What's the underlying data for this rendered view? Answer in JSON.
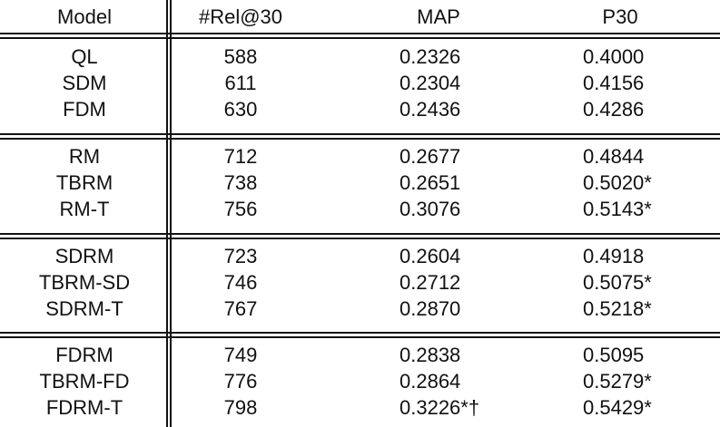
{
  "table": {
    "headers": [
      "Model",
      "#Rel@30",
      "MAP",
      "P30"
    ],
    "groups": [
      [
        [
          "QL",
          "588",
          "0.2326",
          "0.4000"
        ],
        [
          "SDM",
          "611",
          "0.2304",
          "0.4156"
        ],
        [
          "FDM",
          "630",
          "0.2436",
          "0.4286"
        ]
      ],
      [
        [
          "RM",
          "712",
          "0.2677",
          "0.4844"
        ],
        [
          "TBRM",
          "738",
          "0.2651",
          "0.5020*"
        ],
        [
          "RM-T",
          "756",
          "0.3076",
          "0.5143*"
        ]
      ],
      [
        [
          "SDRM",
          "723",
          "0.2604",
          "0.4918"
        ],
        [
          "TBRM-SD",
          "746",
          "0.2712",
          "0.5075*"
        ],
        [
          "SDRM-T",
          "767",
          "0.2870",
          "0.5218*"
        ]
      ],
      [
        [
          "FDRM",
          "749",
          "0.2838",
          "0.5095"
        ],
        [
          "TBRM-FD",
          "776",
          "0.2864",
          "0.5279*"
        ],
        [
          "FDRM-T",
          "798",
          "0.3226*†",
          "0.5429*"
        ]
      ]
    ]
  }
}
